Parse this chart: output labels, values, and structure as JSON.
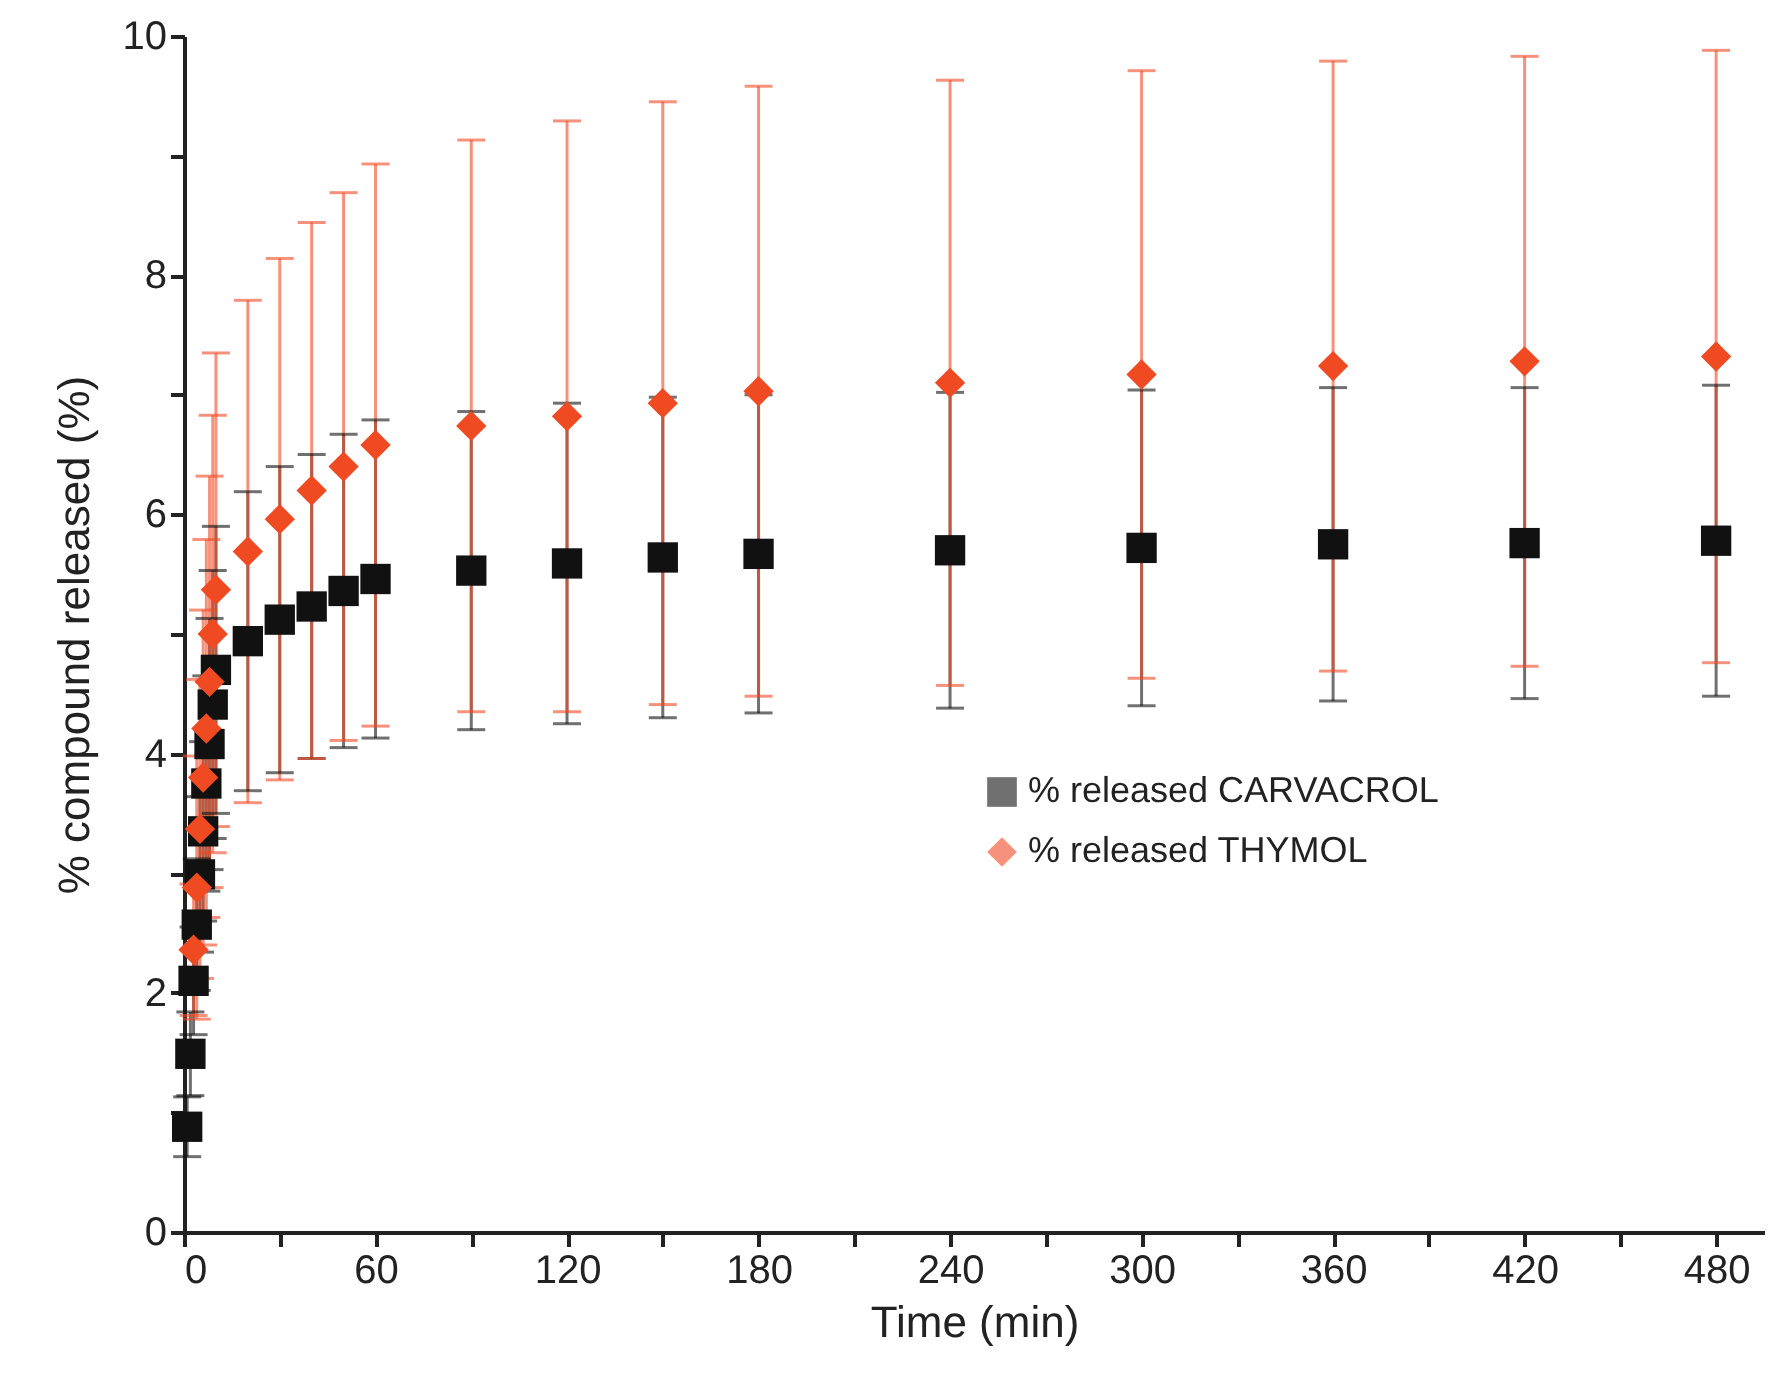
{
  "chart_data": {
    "type": "scatter",
    "xlabel": "Time (min)",
    "ylabel": "% compound released (%)",
    "xlim": [
      0,
      495
    ],
    "ylim": [
      0,
      10
    ],
    "xticks": [
      0,
      {
        "value": 30,
        "label": null
      },
      60,
      {
        "value": 90,
        "label": null
      },
      120,
      {
        "value": 150,
        "label": null
      },
      180,
      {
        "value": 210,
        "label": null
      },
      240,
      {
        "value": 270,
        "label": null
      },
      300,
      {
        "value": 330,
        "label": null
      },
      360,
      {
        "value": 390,
        "label": null
      },
      420,
      {
        "value": 450,
        "label": null
      },
      480
    ],
    "yticks": [
      0,
      {
        "value": 1,
        "label": null
      },
      2,
      {
        "value": 3,
        "label": null
      },
      4,
      {
        "value": 5,
        "label": null
      },
      6,
      {
        "value": 7,
        "label": null
      },
      8,
      {
        "value": 9,
        "label": null
      },
      10
    ],
    "grid": false,
    "legend": "right",
    "series": [
      {
        "name": "% released CARVACROL",
        "color": "#111111",
        "marker": "square",
        "x": [
          1,
          2,
          3,
          4,
          5,
          6,
          7,
          8,
          9,
          10,
          20,
          30,
          40,
          50,
          60,
          90,
          120,
          150,
          180,
          240,
          300,
          360,
          420,
          480
        ],
        "values": [
          0.88,
          1.49,
          2.1,
          2.57,
          2.99,
          3.35,
          3.75,
          4.08,
          4.41,
          4.7,
          4.94,
          5.12,
          5.23,
          5.36,
          5.46,
          5.53,
          5.59,
          5.64,
          5.67,
          5.7,
          5.72,
          5.75,
          5.76,
          5.78
        ],
        "errors": [
          0.25,
          0.35,
          0.45,
          0.55,
          0.65,
          0.75,
          0.9,
          1.05,
          1.12,
          1.2,
          1.25,
          1.28,
          1.27,
          1.31,
          1.33,
          1.33,
          1.34,
          1.34,
          1.33,
          1.32,
          1.32,
          1.31,
          1.3,
          1.3
        ]
      },
      {
        "name": "% released THYMOL",
        "color": "#f04a23",
        "marker": "diamond",
        "x": [
          3,
          4,
          5,
          6,
          7,
          8,
          9,
          10,
          20,
          30,
          40,
          50,
          60,
          90,
          120,
          150,
          180,
          240,
          300,
          360,
          420,
          480
        ],
        "values": [
          2.36,
          2.88,
          3.37,
          3.8,
          4.21,
          4.6,
          5.0,
          5.37,
          5.69,
          5.96,
          6.2,
          6.4,
          6.58,
          6.74,
          6.82,
          6.93,
          7.03,
          7.1,
          7.17,
          7.24,
          7.28,
          7.32
        ],
        "errors": [
          0.55,
          1.1,
          1.25,
          1.4,
          1.58,
          1.72,
          1.83,
          1.98,
          2.1,
          2.18,
          2.24,
          2.29,
          2.35,
          2.39,
          2.47,
          2.52,
          2.55,
          2.53,
          2.54,
          2.55,
          2.55,
          2.56
        ]
      }
    ]
  }
}
